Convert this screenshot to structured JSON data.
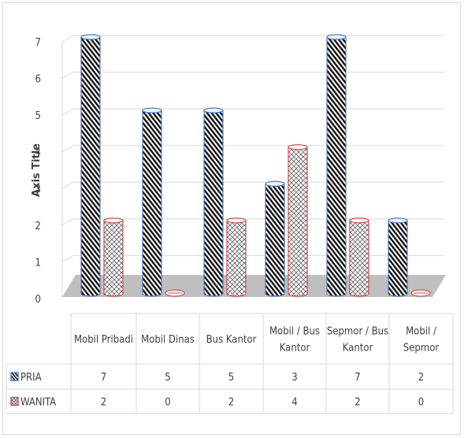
{
  "chart_data": {
    "type": "bar",
    "categories": [
      [
        "Mobil Pribadi"
      ],
      [
        "Mobil Dinas"
      ],
      [
        "Bus Kantor"
      ],
      [
        "Mobil / Bus",
        "Kantor"
      ],
      [
        "Sepmor / Bus",
        "Kantor"
      ],
      [
        "Mobil /",
        "Sepmor"
      ]
    ],
    "series": [
      {
        "name": "PRIA",
        "values": [
          7,
          5,
          5,
          3,
          7,
          2
        ],
        "color": "#4472c4",
        "pattern": "diagonal-stripes"
      },
      {
        "name": "WANITA",
        "values": [
          2,
          0,
          2,
          4,
          2,
          0
        ],
        "color": "#e04a3f",
        "pattern": "crosshatch"
      }
    ],
    "ylabel": "Axis Title",
    "yticks": [
      "0",
      "1",
      "2",
      "3",
      "4",
      "5",
      "6",
      "7"
    ],
    "ylim": [
      0,
      7
    ],
    "grid": true,
    "legend": "data-table",
    "style": "3d-cylinder"
  }
}
